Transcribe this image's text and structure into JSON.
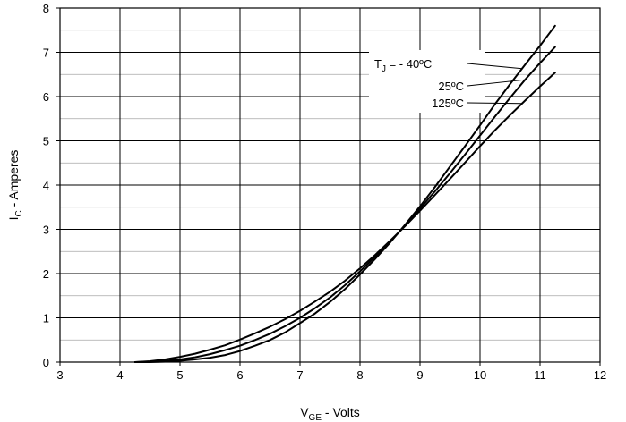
{
  "chart_data": {
    "type": "line",
    "title": "",
    "xlabel": {
      "main": "V",
      "sub": "GE",
      "rest": " - Volts"
    },
    "ylabel": {
      "main": "I",
      "sub": "C",
      "rest": " - Amperes"
    },
    "xlim": [
      3,
      12
    ],
    "ylim": [
      0,
      8
    ],
    "xticks": [
      "3",
      "4",
      "5",
      "6",
      "7",
      "8",
      "9",
      "10",
      "11",
      "12"
    ],
    "yticks": [
      "0",
      "1",
      "2",
      "3",
      "4",
      "5",
      "6",
      "7",
      "8"
    ],
    "grid": {
      "major": true,
      "minor_x": true,
      "minor_y": true
    },
    "legend_placement": "top-right",
    "legend_header": {
      "main": "T",
      "sub": "J",
      "rest": " = - 40ºC"
    },
    "series": [
      {
        "name": "- 40ºC",
        "x": [
          4.25,
          4.5,
          4.75,
          5.0,
          5.25,
          5.5,
          5.75,
          6.0,
          6.25,
          6.5,
          6.75,
          7.0,
          7.25,
          7.5,
          7.75,
          8.0,
          8.25,
          8.5,
          8.75,
          9.0,
          9.25,
          9.5,
          9.75,
          10.0,
          10.25,
          10.5,
          10.75,
          11.0,
          11.25
        ],
        "y": [
          0.0,
          0.0,
          0.01,
          0.03,
          0.06,
          0.1,
          0.16,
          0.25,
          0.37,
          0.5,
          0.67,
          0.88,
          1.1,
          1.36,
          1.65,
          1.98,
          2.33,
          2.7,
          3.1,
          3.52,
          3.96,
          4.42,
          4.88,
          5.35,
          5.83,
          6.28,
          6.72,
          7.15,
          7.6
        ]
      },
      {
        "name": "25ºC",
        "x": [
          4.25,
          4.5,
          4.75,
          5.0,
          5.25,
          5.5,
          5.75,
          6.0,
          6.25,
          6.5,
          6.75,
          7.0,
          7.25,
          7.5,
          7.75,
          8.0,
          8.25,
          8.5,
          8.75,
          9.0,
          9.25,
          9.5,
          9.75,
          10.0,
          10.25,
          10.5,
          10.75,
          11.0,
          11.25
        ],
        "y": [
          0.0,
          0.01,
          0.03,
          0.06,
          0.11,
          0.18,
          0.27,
          0.37,
          0.5,
          0.64,
          0.81,
          1.0,
          1.22,
          1.46,
          1.74,
          2.05,
          2.38,
          2.72,
          3.08,
          3.47,
          3.86,
          4.27,
          4.69,
          5.12,
          5.55,
          5.97,
          6.38,
          6.76,
          7.12
        ]
      },
      {
        "name": "125ºC",
        "x": [
          4.25,
          4.5,
          4.75,
          5.0,
          5.25,
          5.5,
          5.75,
          6.0,
          6.25,
          6.5,
          6.75,
          7.0,
          7.25,
          7.5,
          7.75,
          8.0,
          8.25,
          8.5,
          8.75,
          9.0,
          9.25,
          9.5,
          9.75,
          10.0,
          10.25,
          10.5,
          10.75,
          11.0,
          11.25
        ],
        "y": [
          0.0,
          0.02,
          0.06,
          0.12,
          0.19,
          0.28,
          0.38,
          0.51,
          0.65,
          0.8,
          0.97,
          1.16,
          1.37,
          1.59,
          1.84,
          2.12,
          2.42,
          2.74,
          3.07,
          3.42,
          3.78,
          4.14,
          4.51,
          4.88,
          5.24,
          5.58,
          5.91,
          6.23,
          6.54
        ]
      }
    ],
    "line_color": "#000000",
    "grid_color": "#a8a8a8"
  }
}
